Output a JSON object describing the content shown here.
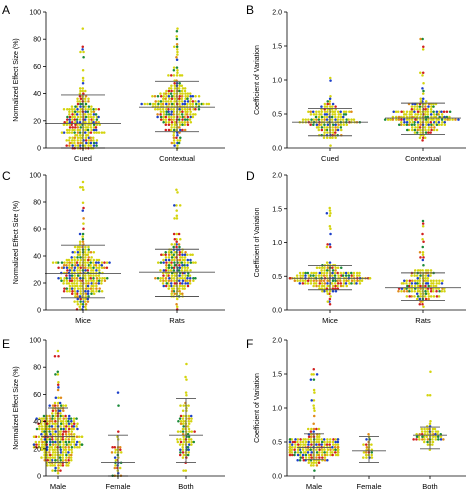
{
  "palette": [
    "#d4d40f",
    "#d11f1f",
    "#1c3fc9",
    "#1a8a3a",
    "#e08a1a"
  ],
  "chart_data": [
    {
      "panel": "A",
      "type": "scatter",
      "subtype": "beeswarm",
      "ylabel": "Normalized Effect Size (%)",
      "ylim": [
        0,
        100
      ],
      "yticks": [
        "0",
        "20",
        "40",
        "60",
        "80",
        "100"
      ],
      "ytick_values": [
        0,
        20,
        40,
        60,
        80,
        100
      ],
      "categories": [
        "Cued",
        "Contextual"
      ],
      "groups": [
        {
          "n": 230,
          "min": 0,
          "max": 95,
          "mean": 18,
          "sd_low": 0,
          "sd_high": 39
        },
        {
          "n": 270,
          "min": 0,
          "max": 94,
          "mean": 30,
          "sd_low": 12,
          "sd_high": 49
        }
      ]
    },
    {
      "panel": "B",
      "type": "scatter",
      "subtype": "beeswarm",
      "ylabel": "Coefficient of Variation",
      "ylim": [
        0,
        2.0
      ],
      "yticks": [
        "0.0",
        "0.5",
        "1.0",
        "1.5",
        "2.0"
      ],
      "ytick_values": [
        0,
        0.5,
        1.0,
        1.5,
        2.0
      ],
      "categories": [
        "Cued",
        "Contextual"
      ],
      "groups": [
        {
          "n": 160,
          "min": 0.05,
          "max": 1.05,
          "mean": 0.38,
          "sd_low": 0.18,
          "sd_high": 0.58
        },
        {
          "n": 200,
          "min": 0.05,
          "max": 1.6,
          "mean": 0.44,
          "sd_low": 0.2,
          "sd_high": 0.66
        }
      ]
    },
    {
      "panel": "C",
      "type": "scatter",
      "subtype": "beeswarm",
      "ylabel": "Normalized Effect Size (%)",
      "ylim": [
        0,
        100
      ],
      "yticks": [
        "0",
        "20",
        "40",
        "60",
        "80",
        "100"
      ],
      "ytick_values": [
        0,
        20,
        40,
        60,
        80,
        100
      ],
      "categories": [
        "Mice",
        "Rats"
      ],
      "groups": [
        {
          "n": 290,
          "min": 0,
          "max": 95,
          "mean": 27,
          "sd_low": 9,
          "sd_high": 48
        },
        {
          "n": 210,
          "min": 0,
          "max": 93,
          "mean": 28,
          "sd_low": 10,
          "sd_high": 45
        }
      ]
    },
    {
      "panel": "D",
      "type": "scatter",
      "subtype": "beeswarm",
      "ylabel": "Coefficient of Variation",
      "ylim": [
        0,
        2.0
      ],
      "yticks": [
        "0.0",
        "0.5",
        "1.0",
        "1.5",
        "2.0"
      ],
      "ytick_values": [
        0,
        0.5,
        1.0,
        1.5,
        2.0
      ],
      "categories": [
        "Mice",
        "Rats"
      ],
      "groups": [
        {
          "n": 200,
          "min": 0.05,
          "max": 1.55,
          "mean": 0.47,
          "sd_low": 0.3,
          "sd_high": 0.66
        },
        {
          "n": 150,
          "min": 0.05,
          "max": 1.6,
          "mean": 0.33,
          "sd_low": 0.14,
          "sd_high": 0.55
        }
      ]
    },
    {
      "panel": "E",
      "type": "scatter",
      "subtype": "beeswarm",
      "ylabel": "Normalized Effect Size (%)",
      "ylim": [
        0,
        100
      ],
      "yticks": [
        "0",
        "20",
        "40",
        "60",
        "80",
        "100"
      ],
      "ytick_values": [
        0,
        20,
        40,
        60,
        80,
        100
      ],
      "categories": [
        "Male",
        "Female",
        "Both"
      ],
      "groups": [
        {
          "n": 320,
          "min": 0,
          "max": 94,
          "mean": 29,
          "sd_low": 10,
          "sd_high": 50
        },
        {
          "n": 35,
          "min": 0,
          "max": 66,
          "mean": 10,
          "sd_low": 0,
          "sd_high": 30
        },
        {
          "n": 90,
          "min": 0,
          "max": 95,
          "mean": 30,
          "sd_low": 10,
          "sd_high": 57
        }
      ]
    },
    {
      "panel": "F",
      "type": "scatter",
      "subtype": "beeswarm",
      "ylabel": "Coefficient of Variation",
      "ylim": [
        0,
        2.0
      ],
      "yticks": [
        "0.0",
        "0.5",
        "1.0",
        "1.5",
        "2.0"
      ],
      "ytick_values": [
        0,
        0.5,
        1.0,
        1.5,
        2.0
      ],
      "categories": [
        "Male",
        "Female",
        "Both"
      ],
      "groups": [
        {
          "n": 230,
          "min": 0.05,
          "max": 1.58,
          "mean": 0.42,
          "sd_low": 0.24,
          "sd_high": 0.62
        },
        {
          "n": 25,
          "min": 0.1,
          "max": 0.8,
          "mean": 0.37,
          "sd_low": 0.2,
          "sd_high": 0.58
        },
        {
          "n": 60,
          "min": 0.1,
          "max": 1.55,
          "mean": 0.6,
          "sd_low": 0.4,
          "sd_high": 0.72
        }
      ]
    }
  ]
}
